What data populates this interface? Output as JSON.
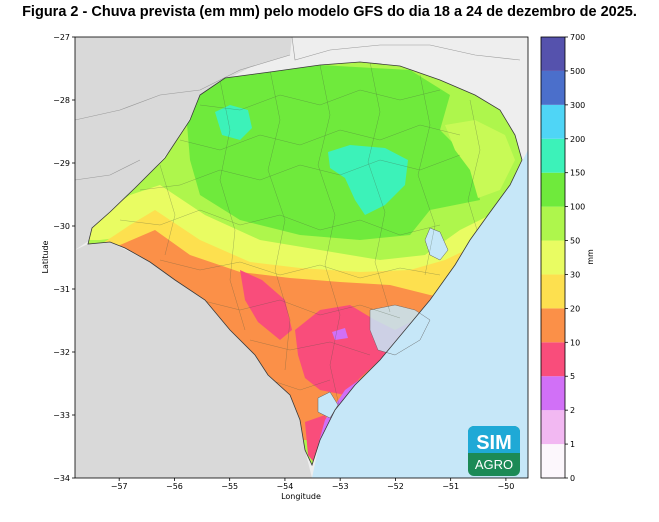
{
  "title": "Figura 2 - Chuva prevista (em mm) pelo modelo GFS do dia 18 a 24 de dezembro de 2025.",
  "map": {
    "xlabel": "Longitude",
    "ylabel": "Latitude",
    "lon_range": [
      -57.8,
      -49.6
    ],
    "lat_range": [
      -34,
      -27
    ],
    "x_ticks": [
      "−57",
      "−56",
      "−55",
      "−54",
      "−53",
      "−52",
      "−51",
      "−50"
    ],
    "y_ticks": [
      "−27",
      "−28",
      "−29",
      "−30",
      "−31",
      "−32",
      "−33",
      "−34"
    ],
    "colors": {
      "ocean": "#c6e7f8",
      "neighbor_land": "#d9d9d9",
      "neighbor_land_east": "#eeeeee"
    }
  },
  "colorbar": {
    "label": "mm",
    "levels": [
      {
        "value": "0",
        "color": "#fcf7fc"
      },
      {
        "value": "1",
        "color": "#f2b8f2"
      },
      {
        "value": "2",
        "color": "#d170f7"
      },
      {
        "value": "5",
        "color": "#f94d7b"
      },
      {
        "value": "10",
        "color": "#fb9048"
      },
      {
        "value": "20",
        "color": "#fde04f"
      },
      {
        "value": "30",
        "color": "#e9fc62"
      },
      {
        "value": "50",
        "color": "#aef64c"
      },
      {
        "value": "100",
        "color": "#6fea3c"
      },
      {
        "value": "150",
        "color": "#3cf2b9"
      },
      {
        "value": "200",
        "color": "#4fd5f6"
      },
      {
        "value": "300",
        "color": "#4b6fcb"
      },
      {
        "value": "500",
        "color": "#5552ad"
      },
      {
        "value": "700",
        "color": ""
      }
    ]
  },
  "logo": {
    "top": "SIM",
    "bottom": "AGRO"
  }
}
